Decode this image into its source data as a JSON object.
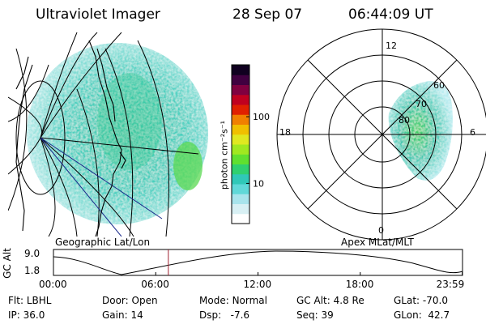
{
  "header": {
    "title": "Ultraviolet Imager",
    "date": "28 Sep 07",
    "time": "06:44:09 UT"
  },
  "colorbar": {
    "unit_label": "photon cm⁻²s⁻¹",
    "ticks": [
      {
        "value": 10,
        "label": "10"
      },
      {
        "value": 100,
        "label": "100"
      }
    ],
    "colors": [
      "#ffffff",
      "#d8f0f4",
      "#a8e4ec",
      "#60d8d8",
      "#30c8b8",
      "#30d070",
      "#60e030",
      "#a0e820",
      "#e0e820",
      "#f0c000",
      "#f08000",
      "#e02000",
      "#c00020",
      "#800040",
      "#400040",
      "#100020"
    ]
  },
  "left_panel": {
    "caption": "Geographic Lat/Lon"
  },
  "right_panel": {
    "caption": "Apex MLat/MLT",
    "mlt_labels": {
      "top": "12",
      "bottom": "0",
      "left": "18",
      "right": "6"
    },
    "mlat_labels": [
      {
        "value": 60,
        "label": "60"
      },
      {
        "value": 70,
        "label": "70"
      },
      {
        "value": 80,
        "label": "80"
      }
    ]
  },
  "altitude_plot": {
    "ylabel": "GC Alt",
    "yticks": [
      "9.0",
      "1.8"
    ],
    "xticks": [
      "00:00",
      "06:00",
      "12:00",
      "18:00",
      "23:59"
    ],
    "current_time_hours": 6.74
  },
  "info": {
    "flt": {
      "label": "Flt:",
      "value": "LBHL"
    },
    "ip": {
      "label": "IP:",
      "value": "36.0"
    },
    "door": {
      "label": "Door:",
      "value": "Open"
    },
    "gain": {
      "label": "Gain:",
      "value": "14"
    },
    "mode": {
      "label": "Mode:",
      "value": "Normal"
    },
    "dsp": {
      "label": "Dsp:",
      "value": "-7.6"
    },
    "gcalt": {
      "label": "GC Alt:",
      "value": "4.8 Re"
    },
    "seq": {
      "label": "Seq:",
      "value": "39"
    },
    "glat": {
      "label": "GLat:",
      "value": "-70.0"
    },
    "glon": {
      "label": "GLon:",
      "value": "42.7"
    }
  }
}
